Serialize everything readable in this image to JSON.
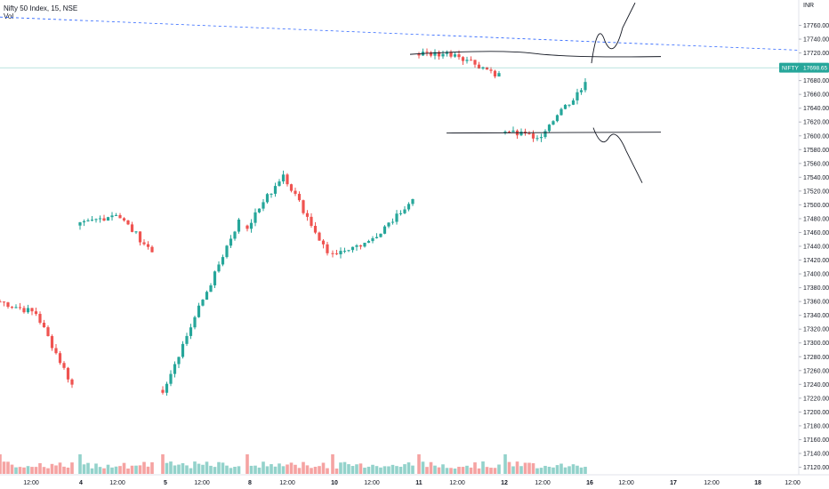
{
  "header": {
    "title": "Nifty 50 Index, 15, NSE",
    "indicator": "Vol"
  },
  "price_axis": {
    "currency": "INR",
    "ticks": [
      17120,
      17140,
      17160,
      17180,
      17200,
      17220,
      17240,
      17260,
      17280,
      17300,
      17320,
      17340,
      17360,
      17380,
      17400,
      17420,
      17440,
      17460,
      17480,
      17500,
      17520,
      17540,
      17560,
      17580,
      17600,
      17620,
      17640,
      17660,
      17680,
      17700,
      17720,
      17740,
      17760
    ]
  },
  "last_price_label": {
    "symbol": "NIFTY",
    "value": "17698.65"
  },
  "time_axis": {
    "labels": [
      "12:00",
      "4",
      "12:00",
      "5",
      "12:00",
      "8",
      "12:00",
      "10",
      "12:00",
      "11",
      "12:00",
      "12",
      "12:00",
      "16",
      "12:00",
      "17",
      "12:00",
      "18",
      "12:00"
    ]
  },
  "colors": {
    "up": "#26a69a",
    "down": "#ef5350",
    "vol_up": "#93d2cb",
    "vol_down": "#f5a3a2",
    "trendline": "#2962ff",
    "price_line": "#26a69a",
    "drawing": "#131722"
  },
  "chart_data": {
    "type": "candlestick",
    "title": "Nifty 50 Index, 15, NSE",
    "ylabel": "INR",
    "ylim": [
      17105,
      17775
    ],
    "last_price": 17698.65,
    "sessions": [
      "3",
      "4",
      "5",
      "8",
      "10",
      "11",
      "12"
    ],
    "session_closes": [
      17239,
      17432,
      17474,
      17430,
      17509,
      17688,
      17675
    ],
    "session_highs": [
      17343,
      17488,
      17474,
      17545,
      17560,
      17719,
      17722
    ],
    "session_lows": [
      17225,
      17212,
      17350,
      17345,
      17446,
      17607,
      17600
    ],
    "annotations": [
      {
        "type": "trendline",
        "from": 17772,
        "to": 17724
      },
      {
        "type": "range",
        "resistance": 17718,
        "support": 17604
      },
      {
        "type": "scenario",
        "direction": "up"
      },
      {
        "type": "scenario",
        "direction": "down"
      }
    ]
  }
}
